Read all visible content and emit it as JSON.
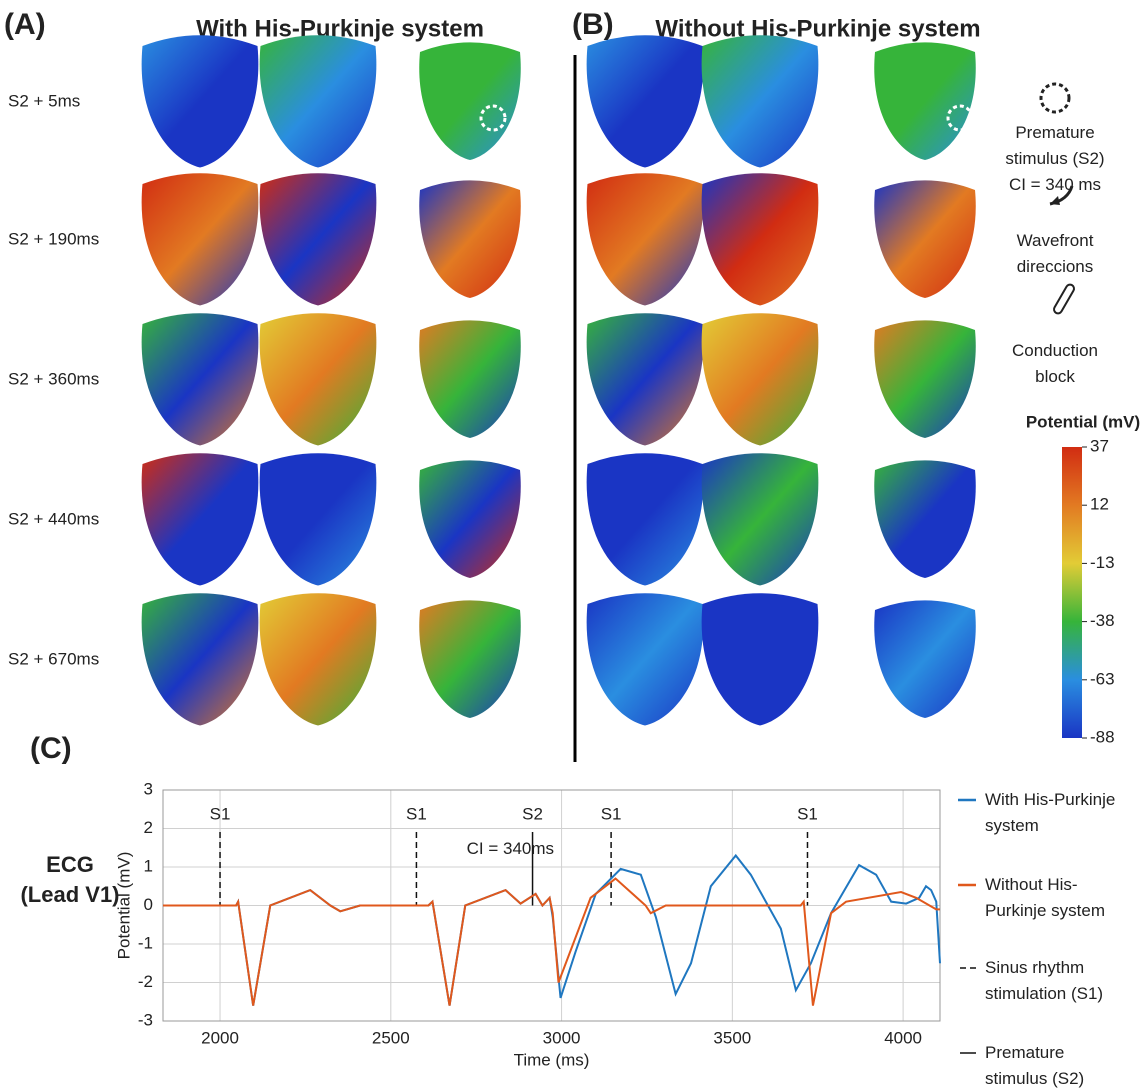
{
  "figure": {
    "panels": [
      {
        "label": "(A)",
        "title": "With His-Purkinje system"
      },
      {
        "label": "(B)",
        "title": "Without His-Purkinje system"
      }
    ],
    "row_labels": [
      "S2 + 5ms",
      "S2 + 190ms",
      "S2 + 360ms",
      "S2 + 440ms",
      "S2 + 670ms"
    ],
    "legend": [
      {
        "name": "Premature stimulus (S2)",
        "note": "CI = 340 ms"
      },
      {
        "name": "Wavefront direccions"
      },
      {
        "name": "Conduction block"
      }
    ],
    "colorbar": {
      "label": "Potential (mV)",
      "lim": [
        -88,
        37
      ],
      "ticks": [
        37,
        12,
        -13,
        -38,
        -63,
        -88
      ]
    },
    "ecg_panel_label": "(C)",
    "ecg_side_label": "ECG (Lead V1)"
  },
  "chart_data": {
    "type": "line",
    "xlabel": "Time (ms)",
    "ylabel": "Potential (mV)",
    "xlim": [
      1833,
      4108
    ],
    "ylim": [
      -3,
      3
    ],
    "xticks": [
      2000,
      2500,
      3000,
      3500,
      4000
    ],
    "yticks": [
      -3,
      -2,
      -1,
      0,
      1,
      2,
      3
    ],
    "grid": true,
    "series": [
      {
        "name": "With His-Purkinje system",
        "color": "#1f77c0",
        "x": [
          1833,
          2047,
          2053,
          2097,
          2147,
          2264,
          2323,
          2352,
          2410,
          2610,
          2622,
          2672,
          2718,
          2836,
          2880,
          2924,
          2944,
          2965,
          2974,
          2997,
          3041,
          3100,
          3173,
          3232,
          3276,
          3334,
          3379,
          3437,
          3510,
          3554,
          3642,
          3686,
          3730,
          3789,
          3871,
          3921,
          3965,
          4009,
          4047,
          4067,
          4082,
          4097,
          4108
        ],
        "values": [
          0,
          0,
          0.1,
          -2.6,
          0,
          0.4,
          0,
          -0.15,
          0,
          0,
          0.1,
          -2.6,
          0,
          0.4,
          0.05,
          0.3,
          0,
          0.2,
          -0.3,
          -2.4,
          -1.2,
          0.3,
          0.95,
          0.8,
          -0.3,
          -2.3,
          -1.5,
          0.5,
          1.3,
          0.8,
          -0.6,
          -2.2,
          -1.5,
          -0.2,
          1.05,
          0.8,
          0.1,
          0.05,
          0.2,
          0.5,
          0.4,
          0.1,
          -1.5
        ]
      },
      {
        "name": "Without His-Purkinje system",
        "color": "#e0581c",
        "x": [
          1833,
          2047,
          2053,
          2097,
          2147,
          2264,
          2323,
          2352,
          2410,
          2610,
          2622,
          2672,
          2718,
          2836,
          2880,
          2924,
          2944,
          2965,
          2974,
          2991,
          3085,
          3158,
          3246,
          3261,
          3305,
          3700,
          3709,
          3736,
          3789,
          3833,
          3994,
          4038,
          4097,
          4108
        ],
        "values": [
          0,
          0,
          0.1,
          -2.6,
          0,
          0.4,
          0,
          -0.15,
          0,
          0,
          0.1,
          -2.6,
          0,
          0.4,
          0.05,
          0.3,
          0,
          0.2,
          -0.2,
          -2.0,
          0.2,
          0.7,
          0,
          -0.2,
          0,
          0,
          0.1,
          -2.6,
          -0.2,
          0.1,
          0.35,
          0.2,
          -0.1,
          -0.1
        ]
      }
    ],
    "markers": [
      {
        "label": "S1",
        "x": 2000,
        "style": "dashed"
      },
      {
        "label": "S1",
        "x": 2575,
        "style": "dashed"
      },
      {
        "label": "S2",
        "x": 2915,
        "style": "solid"
      },
      {
        "label": "S1",
        "x": 3145,
        "style": "dashed"
      },
      {
        "label": "S1",
        "x": 3720,
        "style": "dashed"
      }
    ],
    "marker_legend": [
      {
        "name": "Sinus rhythm stimulation (S1)",
        "style": "dashed"
      },
      {
        "name": "Premature stimulus (S2)",
        "style": "solid"
      }
    ],
    "annotation": {
      "text": "CI = 340ms",
      "x": 2850,
      "y": 1.45
    }
  }
}
